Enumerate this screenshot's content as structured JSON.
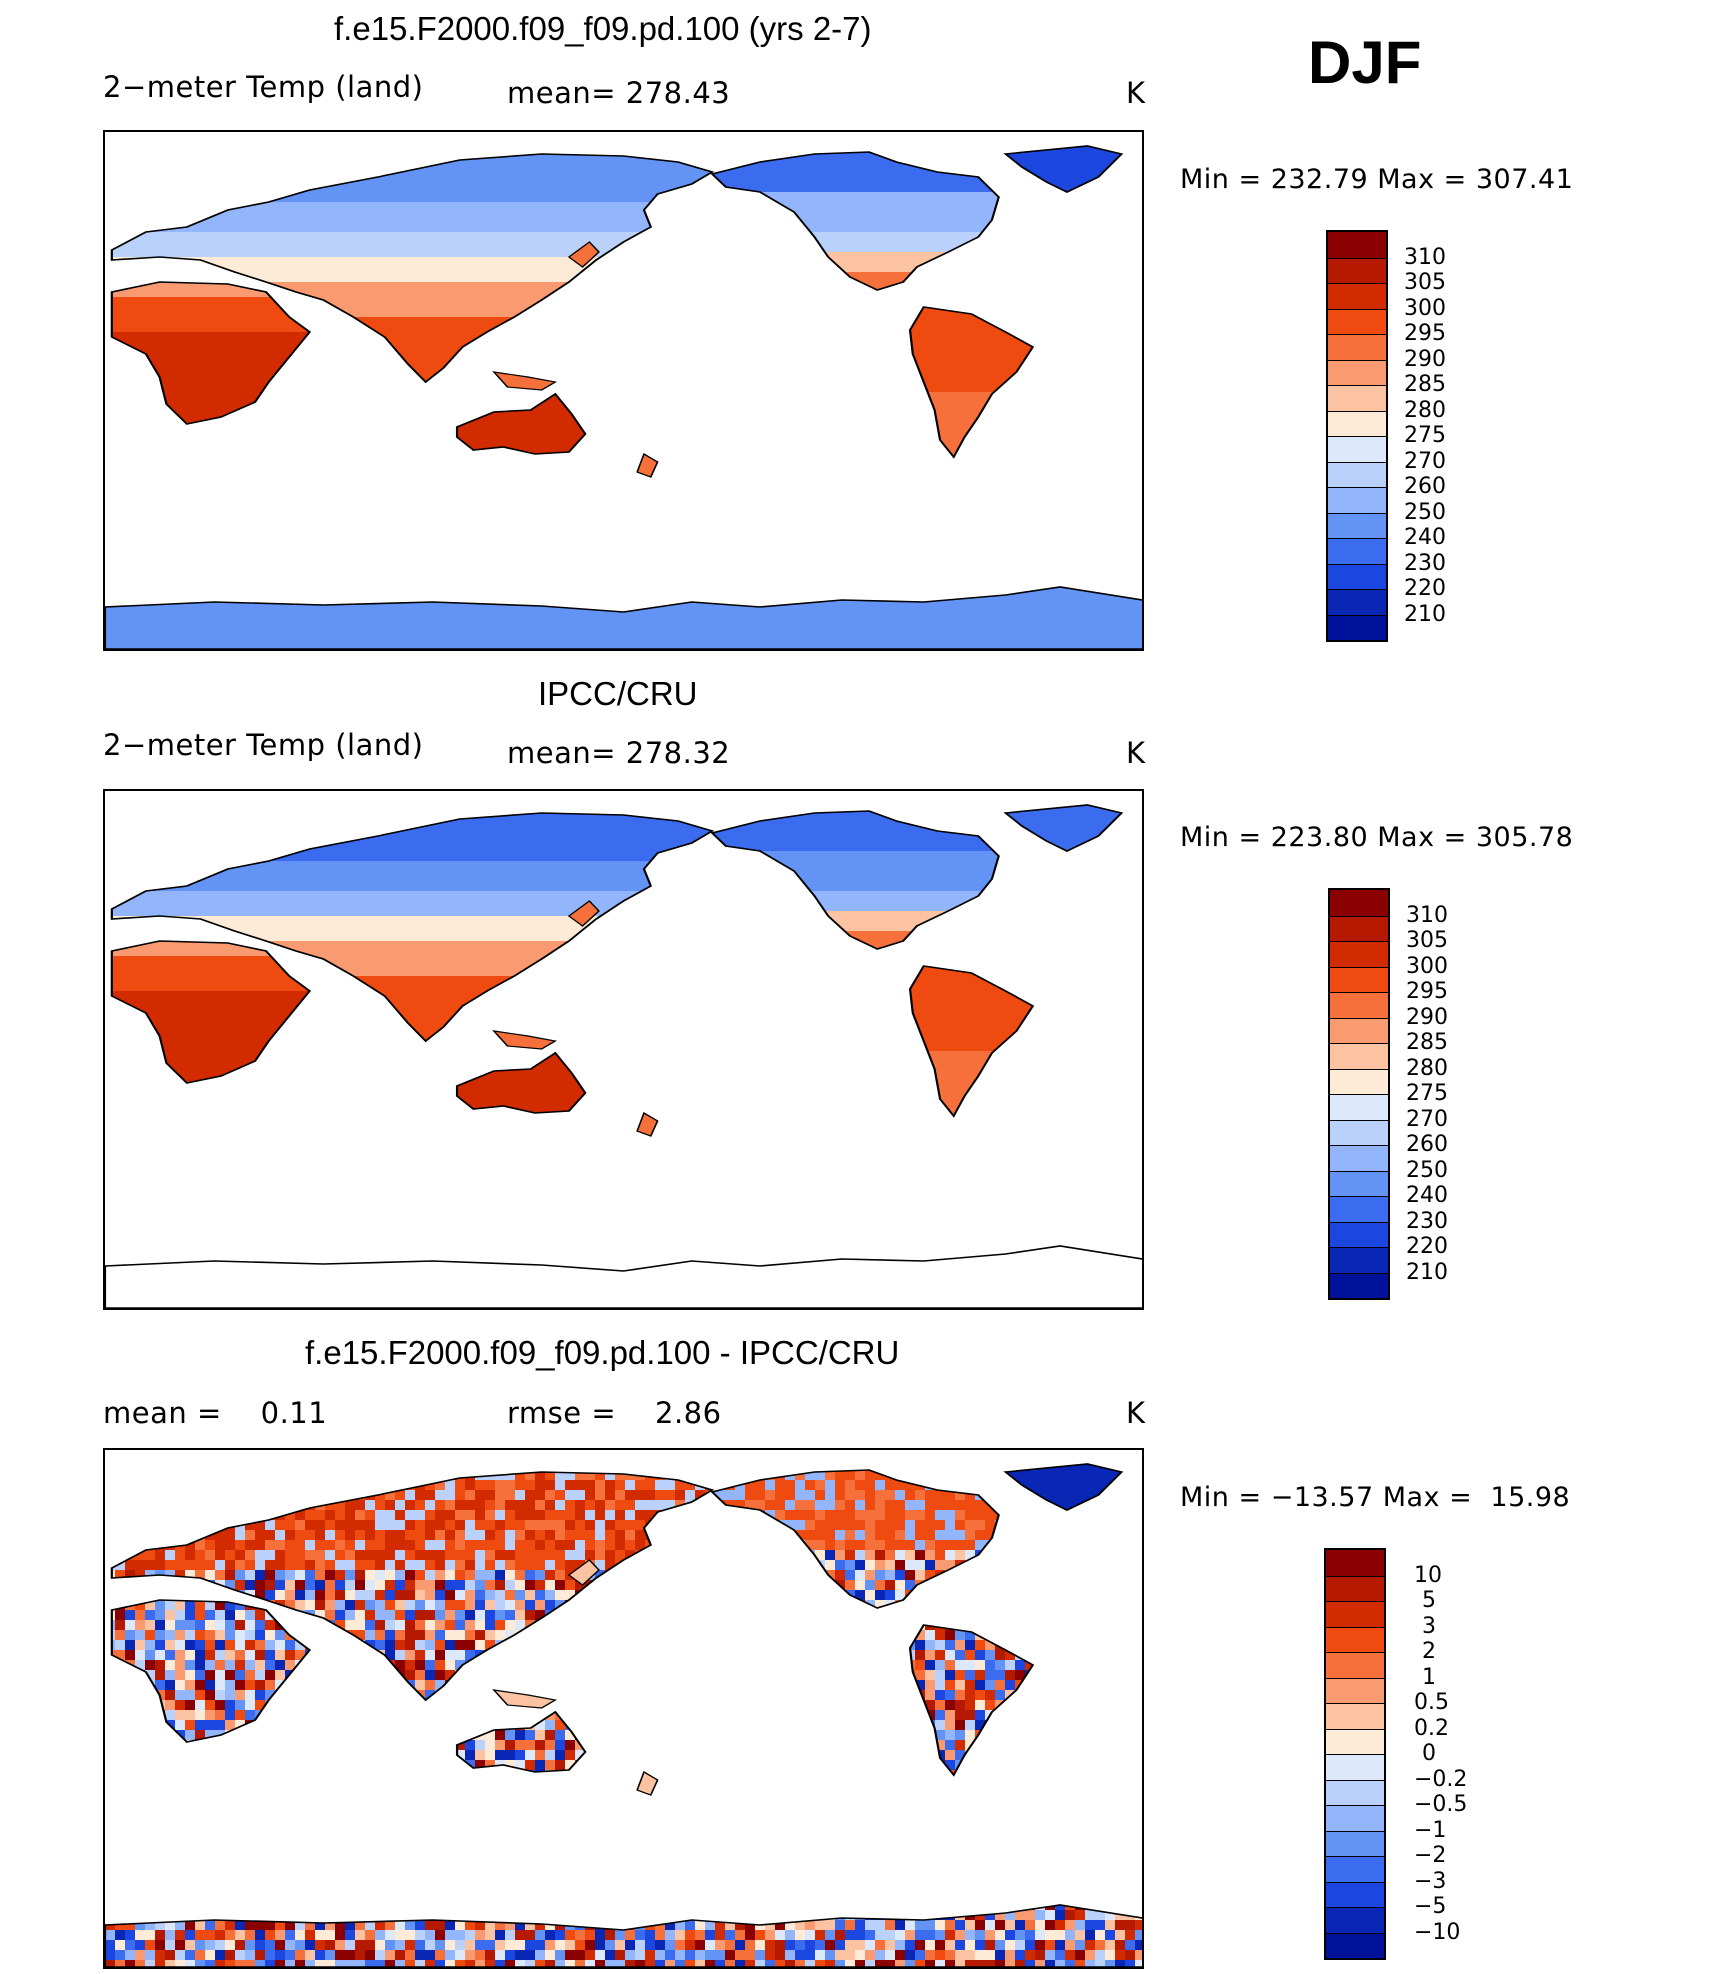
{
  "season": "DJF",
  "panels": [
    {
      "title": "f.e15.F2000.f09_f09.pd.100 (yrs 2-7)",
      "left_text": "2−meter Temp (land)",
      "mid_text": "mean= 278.43",
      "units": "K",
      "minmax": "Min = 232.79 Max = 307.41",
      "colorbar_labels": [
        "310",
        "305",
        "300",
        "295",
        "290",
        "285",
        "280",
        "275",
        "270",
        "260",
        "250",
        "240",
        "230",
        "220",
        "210"
      ],
      "colorbar_colors": [
        "#8b0000",
        "#b51a00",
        "#d22b00",
        "#ef4a10",
        "#f5703a",
        "#f99a70",
        "#fbc3a2",
        "#fdebd8",
        "#dde9fb",
        "#bad2fb",
        "#93b5fb",
        "#6393f5",
        "#3b6cf0",
        "#1c46e0",
        "#0a26b4",
        "#00129a"
      ],
      "map_style": "model"
    },
    {
      "title": "IPCC/CRU",
      "left_text": "2−meter Temp (land)",
      "mid_text": "mean= 278.32",
      "units": "K",
      "minmax": "Min = 223.80 Max = 305.78",
      "colorbar_labels": [
        "310",
        "305",
        "300",
        "295",
        "290",
        "285",
        "280",
        "275",
        "270",
        "260",
        "250",
        "240",
        "230",
        "220",
        "210"
      ],
      "colorbar_colors": [
        "#8b0000",
        "#b51a00",
        "#d22b00",
        "#ef4a10",
        "#f5703a",
        "#f99a70",
        "#fbc3a2",
        "#fdebd8",
        "#dde9fb",
        "#bad2fb",
        "#93b5fb",
        "#6393f5",
        "#3b6cf0",
        "#1c46e0",
        "#0a26b4",
        "#00129a"
      ],
      "map_style": "obs"
    },
    {
      "title": "f.e15.F2000.f09_f09.pd.100 - IPCC/CRU",
      "left_text": "mean =    0.11",
      "mid_text": "rmse =    2.86",
      "units": "K",
      "minmax": "Min = −13.57 Max =  15.98",
      "colorbar_labels": [
        "10",
        "5",
        "3",
        "2",
        "1",
        "0.5",
        "0.2",
        "0",
        "−0.2",
        "−0.5",
        "−1",
        "−2",
        "−3",
        "−5",
        "−10"
      ],
      "colorbar_colors": [
        "#8b0000",
        "#b51a00",
        "#d22b00",
        "#ef4a10",
        "#f5703a",
        "#f99a70",
        "#fbc3a2",
        "#fdebd8",
        "#dde9fb",
        "#bad2fb",
        "#93b5fb",
        "#6393f5",
        "#3b6cf0",
        "#1c46e0",
        "#0a26b4",
        "#00129a"
      ],
      "map_style": "diff"
    }
  ]
}
